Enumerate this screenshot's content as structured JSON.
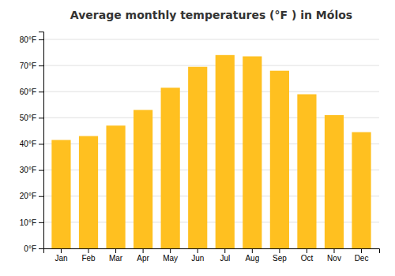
{
  "chart_data": {
    "type": "bar",
    "title": "Average monthly temperatures (°F ) in Mólos",
    "categories": [
      "Jan",
      "Feb",
      "Mar",
      "Apr",
      "May",
      "Jun",
      "Jul",
      "Aug",
      "Sep",
      "Oct",
      "Nov",
      "Dec"
    ],
    "values": [
      41.5,
      43.0,
      47.0,
      53.0,
      61.5,
      69.5,
      74.0,
      73.5,
      68.0,
      59.0,
      51.0,
      44.5
    ],
    "color": "#FFC020",
    "ylim": [
      0,
      83
    ],
    "yticks": [
      {
        "value": 0,
        "label": "0°F"
      },
      {
        "value": 10,
        "label": "10°F"
      },
      {
        "value": 20,
        "label": "20°F"
      },
      {
        "value": 30,
        "label": "30°F"
      },
      {
        "value": 40,
        "label": "40°F"
      },
      {
        "value": 50,
        "label": "50°F"
      },
      {
        "value": 60,
        "label": "60°F"
      },
      {
        "value": 70,
        "label": "70°F"
      },
      {
        "value": 80,
        "label": "80°F"
      }
    ],
    "grid": true
  }
}
